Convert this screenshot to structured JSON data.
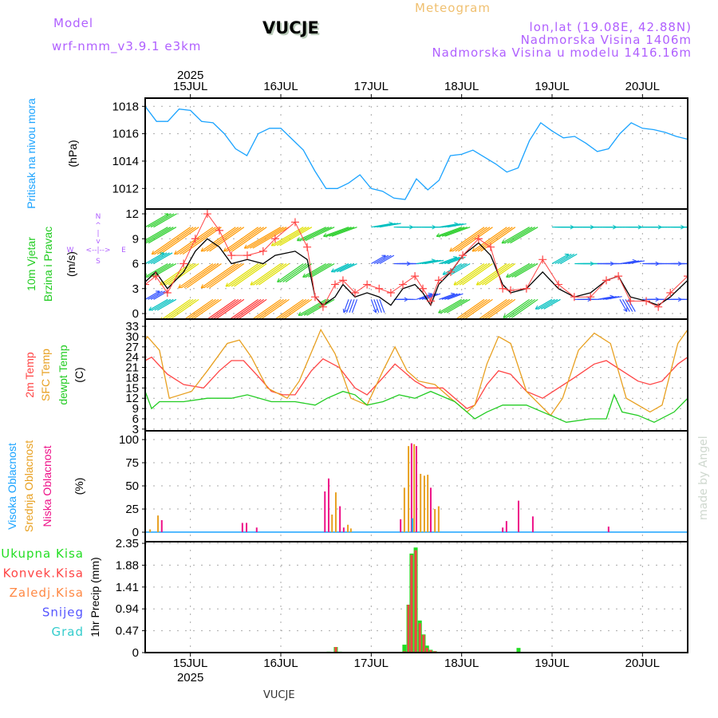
{
  "header": {
    "title": "Meteogram",
    "model_label": "Model",
    "model_name": "wrf-nmm_v3.9.1  e3km",
    "station": "VUCJE",
    "lonlat": "lon,lat (19.08E, 42.88N)",
    "elevation": "Nadmorska Visina 1406m",
    "model_elevation": "Nadmorska Visina u modelu 1416.16m",
    "footer_station": "VUCJE",
    "credit": "made by Angel"
  },
  "colors": {
    "pressure": "#1aa3ff",
    "wind_speed": "#000000",
    "wind_gust": "#ff4444",
    "t2m": "#ff4444",
    "tsfc": "#e8a020",
    "dewpt": "#22cc22",
    "cloud_high": "#1aa3ff",
    "cloud_mid": "#e8a020",
    "cloud_low": "#ee1188",
    "precip_total": "#22dd22",
    "precip_conv": "#ff4444",
    "precip_frozen": "#ff8844",
    "snow": "#5555ff",
    "hail": "#33cccc",
    "compass": "#b060ff",
    "title": "#f0c070"
  },
  "chart_data": {
    "type": "line",
    "x_units": "hours since 14JUL 12UTC",
    "xlim": [
      0,
      144
    ],
    "time_axis": {
      "year": "2025",
      "days": [
        {
          "label": "15JUL",
          "h": 12
        },
        {
          "label": "16JUL",
          "h": 36
        },
        {
          "label": "17JUL",
          "h": 60
        },
        {
          "label": "18JUL",
          "h": 84
        },
        {
          "label": "19JUL",
          "h": 108
        },
        {
          "label": "20JUL",
          "h": 132
        }
      ]
    },
    "panels": [
      {
        "id": "pressure",
        "labels": [
          "Pritisak na nivou mora"
        ],
        "unit": "(hPa)",
        "ylim": [
          1010.5,
          1018.6
        ],
        "ticks": [
          "1012",
          "1014",
          "1016",
          "1018"
        ],
        "series": [
          {
            "name": "Pritisak",
            "color_key": "pressure",
            "h_step": 3,
            "values": [
              1018,
              1016.9,
              1016.9,
              1017.8,
              1017.7,
              1016.9,
              1016.8,
              1016,
              1014.9,
              1014.4,
              1016.0,
              1016.4,
              1016.4,
              1015.6,
              1014.8,
              1013.3,
              1012.0,
              1012.0,
              1012.4,
              1013.0,
              1012.0,
              1011.8,
              1011.3,
              1011.2,
              1012.7,
              1011.9,
              1012.6,
              1014.4,
              1014.5,
              1014.8,
              1014.3,
              1013.8,
              1013.2,
              1013.5,
              1015.5,
              1016.8,
              1016.2,
              1015.7,
              1015.8,
              1015.3,
              1014.7,
              1014.9,
              1016.0,
              1016.8,
              1016.4,
              1016.3,
              1016.1,
              1015.8,
              1015.6
            ]
          }
        ]
      },
      {
        "id": "wind",
        "labels": [
          "10m Vjetar",
          "Brzina i Pravac"
        ],
        "unit": "(m/s)",
        "compass": {
          "n": "N",
          "s": "S",
          "w": "W",
          "e": "E",
          "arrow_h": "<--|-->",
          "arrow_v": "^|v"
        },
        "ylim": [
          -0.67,
          12.58
        ],
        "ticks": [
          "0",
          "3",
          "6",
          "9",
          "12"
        ],
        "hours": [
          0,
          2.8,
          5.9,
          10.2,
          13.3,
          16.5,
          19.7,
          22.9,
          27.1,
          31.3,
          34.5,
          39.8,
          43,
          45.1,
          47.2,
          50.4,
          52.5,
          55.7,
          58.9,
          62.1,
          65.2,
          68.4,
          71.6,
          73.7,
          75.8,
          77.9,
          81.1,
          84.3,
          88.5,
          91.7,
          94.9,
          97,
          101.2,
          105.5,
          109.7,
          113.9,
          118.2,
          122.4,
          125.6,
          128.8,
          133,
          136.2,
          139.4,
          144
        ],
        "speed": [
          3.8,
          5,
          3,
          5,
          7.5,
          9,
          8,
          6,
          6.5,
          6,
          7,
          7.5,
          6.5,
          2,
          1,
          2,
          3.5,
          2,
          2.5,
          2,
          1,
          3,
          3.5,
          2.5,
          1,
          3.5,
          5,
          7,
          8.5,
          7,
          3.5,
          2.5,
          3,
          5,
          3,
          2,
          2.5,
          4,
          4.5,
          2,
          1.5,
          1,
          2,
          4
        ],
        "gust": [
          3.5,
          4.5,
          2.5,
          6,
          9,
          12,
          10,
          7,
          7,
          7.5,
          9,
          11,
          8,
          2,
          0.8,
          3.5,
          4,
          2.5,
          3.5,
          3,
          2.5,
          3.5,
          4.5,
          3,
          1.5,
          4,
          5,
          7,
          9,
          8,
          3,
          2.8,
          3,
          6.5,
          3.5,
          2,
          2,
          4,
          4.5,
          1.5,
          1.5,
          0.8,
          2.5,
          4.5
        ],
        "arrow_rows": [
          {
            "level": 10.4,
            "h_step": 6,
            "dir_to": [
              60,
              240,
              235,
              235,
              235,
              235,
              240,
              240,
              245,
              250,
              80,
              90,
              90,
              80,
              250,
              235,
              235,
              240,
              90,
              90,
              90,
              90,
              90,
              90,
              90
            ],
            "speed": [
              8,
              10,
              16,
              16,
              14,
              14,
              14,
              12,
              10,
              8,
              6,
              5,
              5,
              5,
              8,
              14,
              14,
              10,
              6,
              5,
              5,
              6,
              5,
              5,
              5
            ]
          },
          {
            "level": 6,
            "h_step": 6,
            "dir_to": [
              60,
              240,
              235,
              235,
              235,
              235,
              235,
              235,
              240,
              245,
              60,
              90,
              80,
              70,
              240,
              235,
              235,
              240,
              60,
              90,
              90,
              80,
              90,
              90,
              90
            ],
            "speed": [
              6,
              8,
              12,
              14,
              14,
              13,
              12,
              10,
              8,
              5,
              4,
              4,
              5,
              5,
              6,
              12,
              12,
              8,
              5,
              5,
              4,
              4,
              4,
              4,
              4
            ]
          },
          {
            "level": 1.7,
            "h_step": 6,
            "dir_to": [
              60,
              240,
              235,
              235,
              235,
              235,
              235,
              235,
              240,
              200,
              160,
              90,
              70,
              70,
              240,
              235,
              235,
              235,
              240,
              90,
              80,
              150,
              90,
              90,
              90
            ],
            "speed": [
              4,
              6,
              12,
              16,
              18,
              18,
              16,
              14,
              10,
              3,
              3,
              3,
              4,
              4,
              8,
              14,
              14,
              10,
              5,
              4,
              4,
              3,
              4,
              4,
              4
            ]
          }
        ]
      },
      {
        "id": "temperature",
        "labels": [
          "2m Temp",
          "SFC Temp",
          "dewpt Temp"
        ],
        "unit": "(C)",
        "ylim": [
          2.5,
          35.1
        ],
        "ticks": [
          "3",
          "6",
          "9",
          "12",
          "15",
          "18",
          "21",
          "24",
          "27",
          "30",
          "33"
        ],
        "series": [
          {
            "name": "2m Temp",
            "color_key": "t2m",
            "h": [
              0,
              1.7,
              5.9,
              10.2,
              15.5,
              19.7,
              22.9,
              26.1,
              30.3,
              33.5,
              36.6,
              39.8,
              44.1,
              47.2,
              51.5,
              55.7,
              58.9,
              63.1,
              66.3,
              71.6,
              74.8,
              79,
              82.2,
              85.4,
              87.5,
              90.7,
              93.8,
              97,
              101.2,
              105.5,
              109.7,
              113.9,
              119.2,
              122.4,
              126.6,
              130.8,
              134,
              137.2,
              141.4,
              144
            ],
            "values": [
              23,
              24,
              19,
              16,
              15,
              20,
              23,
              23,
              18,
              14,
              13,
              13,
              20,
              23.5,
              21,
              15,
              13,
              18,
              22,
              17,
              15,
              15,
              12,
              9,
              10,
              16,
              20,
              19,
              14,
              12,
              15,
              18,
              22,
              23,
              20,
              17,
              16,
              17,
              22,
              24
            ]
          },
          {
            "name": "SFC Temp",
            "color_key": "tsfc",
            "h": [
              0,
              0.6,
              3.8,
              6.4,
              12.3,
              16.5,
              21.8,
              25,
              28.2,
              32.4,
              37.7,
              40.9,
              45.1,
              46.6,
              50.4,
              54.6,
              58.9,
              63.1,
              66.3,
              69.5,
              72.6,
              76.9,
              81.1,
              85.4,
              87.5,
              90.7,
              93.8,
              97,
              101.2,
              107.6,
              110.8,
              115,
              119.2,
              123.5,
              127.7,
              134,
              137.2,
              141.4,
              144
            ],
            "values": [
              29,
              30,
              26,
              12,
              14,
              20,
              28,
              29,
              24,
              15,
              12,
              17,
              28,
              32,
              25,
              12,
              10,
              20,
              27,
              20,
              17,
              16,
              12,
              8,
              10,
              22,
              30,
              28,
              14,
              7,
              12,
              26,
              31,
              28,
              12,
              8,
              10,
              28,
              32
            ]
          },
          {
            "name": "dewpt Temp",
            "color_key": "dewpt",
            "h": [
              0,
              1.7,
              3.8,
              10.2,
              16.5,
              22.9,
              27.1,
              33.5,
              39.8,
              45.1,
              48.3,
              52.5,
              55.7,
              58.9,
              63.1,
              67.4,
              71.6,
              75.8,
              82.2,
              87.5,
              90.7,
              94.9,
              101.2,
              107.6,
              111.8,
              118.2,
              122.4,
              124.5,
              126.6,
              130.8,
              135.1,
              140.4,
              144
            ],
            "values": [
              14,
              9,
              11,
              11,
              12,
              12,
              13,
              11,
              11,
              10,
              12,
              14,
              13,
              10,
              11,
              13,
              12,
              14,
              11,
              6,
              8,
              10,
              10,
              7,
              5,
              6,
              6,
              13,
              8,
              7,
              5,
              8,
              12
            ]
          }
        ]
      },
      {
        "id": "clouds",
        "labels": [
          "Visoka Oblacnost",
          "Srednja Oblacnost",
          "Niska Oblacnost"
        ],
        "unit": "(%)",
        "ylim": [
          -10.3,
          109.5
        ],
        "ticks": [
          "0",
          "25",
          "50",
          "75",
          "100"
        ],
        "bars": [
          {
            "h": 1.3,
            "type": "mid",
            "v": 3
          },
          {
            "h": 3.4,
            "type": "mid",
            "v": 18
          },
          {
            "h": 4.4,
            "type": "low",
            "v": 13
          },
          {
            "h": 25.8,
            "type": "low",
            "v": 10
          },
          {
            "h": 26.9,
            "type": "low",
            "v": 10
          },
          {
            "h": 29.6,
            "type": "low",
            "v": 5
          },
          {
            "h": 47.7,
            "type": "low",
            "v": 44
          },
          {
            "h": 48.7,
            "type": "low",
            "v": 58
          },
          {
            "h": 49.6,
            "type": "mid",
            "v": 19
          },
          {
            "h": 50.6,
            "type": "mid",
            "v": 43
          },
          {
            "h": 51.7,
            "type": "low",
            "v": 28
          },
          {
            "h": 52.7,
            "type": "low",
            "v": 5
          },
          {
            "h": 53.8,
            "type": "mid",
            "v": 8
          },
          {
            "h": 54.6,
            "type": "mid",
            "v": 4
          },
          {
            "h": 67.8,
            "type": "low",
            "v": 14
          },
          {
            "h": 68.8,
            "type": "mid",
            "v": 48
          },
          {
            "h": 69.9,
            "type": "mid",
            "v": 93
          },
          {
            "h": 70.7,
            "type": "low",
            "v": 96
          },
          {
            "h": 70.9,
            "type": "high",
            "v": 15
          },
          {
            "h": 71.4,
            "type": "mid",
            "v": 95
          },
          {
            "h": 72,
            "type": "low",
            "v": 93
          },
          {
            "h": 73.1,
            "type": "mid",
            "v": 63
          },
          {
            "h": 74.1,
            "type": "mid",
            "v": 61
          },
          {
            "h": 75,
            "type": "mid",
            "v": 62
          },
          {
            "h": 75.8,
            "type": "low",
            "v": 48
          },
          {
            "h": 76.9,
            "type": "mid",
            "v": 25
          },
          {
            "h": 77.9,
            "type": "mid",
            "v": 28
          },
          {
            "h": 94.9,
            "type": "low",
            "v": 5
          },
          {
            "h": 95.9,
            "type": "low",
            "v": 12
          },
          {
            "h": 99.1,
            "type": "low",
            "v": 34
          },
          {
            "h": 102.9,
            "type": "low",
            "v": 17
          },
          {
            "h": 123,
            "type": "low",
            "v": 6
          }
        ]
      },
      {
        "id": "precip",
        "labels": [
          "Ukupna  Kisa",
          "Konvek.Kisa",
          "Zaledj.Kisa",
          "Snijeg",
          "Grad"
        ],
        "label_keys": [
          "precip_total",
          "precip_conv",
          "precip_frozen",
          "snow",
          "hail"
        ],
        "unit": "1hr Precip (mm)",
        "ylim": [
          0,
          2.385
        ],
        "ticks": [
          "0",
          "0.47",
          "0.94",
          "1.41",
          "1.88",
          "2.35"
        ],
        "bars": [
          {
            "h": 48.7,
            "total": 0.02,
            "conv": 0.01
          },
          {
            "h": 50.6,
            "total": 0.12,
            "conv": 0.12
          },
          {
            "h": 51.7,
            "total": 0.02,
            "conv": 0
          },
          {
            "h": 68.8,
            "total": 0.17,
            "conv": 0.03
          },
          {
            "h": 69.9,
            "total": 1.03,
            "conv": 1.03
          },
          {
            "h": 70.7,
            "total": 2.13,
            "conv": 2.1
          },
          {
            "h": 71.8,
            "total": 2.26,
            "conv": 2.2
          },
          {
            "h": 72.9,
            "total": 0.69,
            "conv": 0.63
          },
          {
            "h": 73.9,
            "total": 0.39,
            "conv": 0.38
          },
          {
            "h": 74.8,
            "total": 0.15,
            "conv": 0.1
          },
          {
            "h": 75.8,
            "total": 0.06,
            "conv": 0.05
          },
          {
            "h": 76.9,
            "total": 0.03,
            "conv": 0.03
          },
          {
            "h": 99.1,
            "total": 0.1,
            "conv": 0
          }
        ]
      }
    ]
  }
}
